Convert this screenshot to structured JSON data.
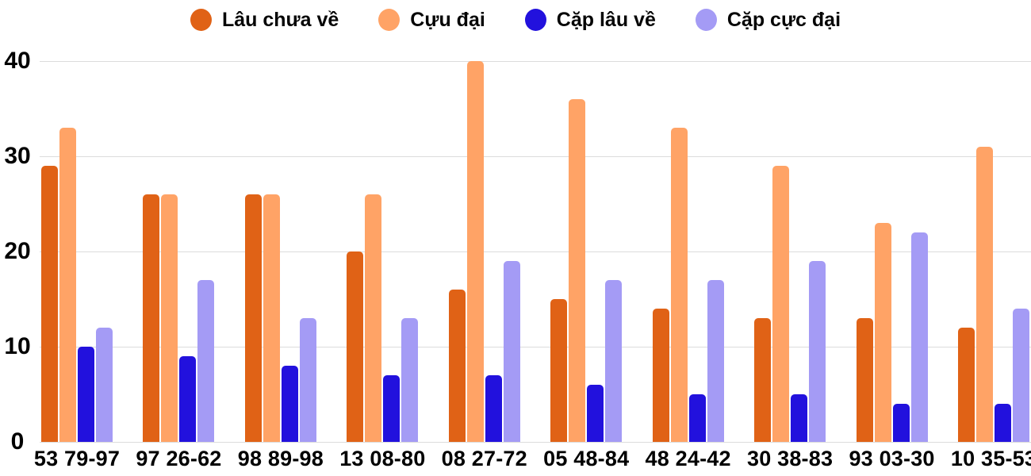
{
  "chart_data": {
    "type": "bar",
    "title": "",
    "xlabel": "",
    "ylabel": "",
    "categories": [
      "53 79-97",
      "97 26-62",
      "98 89-98",
      "13 08-80",
      "08 27-72",
      "05 48-84",
      "48 24-42",
      "30 38-83",
      "93 03-30",
      "10 35-53"
    ],
    "series": [
      {
        "name": "Lâu chưa về",
        "color": "#E06216",
        "values": [
          29,
          26,
          26,
          20,
          16,
          15,
          14,
          13,
          13,
          12
        ]
      },
      {
        "name": "Cựu đại",
        "color": "#FFA366",
        "values": [
          33,
          26,
          26,
          26,
          40,
          36,
          33,
          29,
          23,
          31
        ]
      },
      {
        "name": "Cặp lâu về",
        "color": "#2211DD",
        "values": [
          10,
          9,
          8,
          7,
          7,
          6,
          5,
          5,
          4,
          4
        ]
      },
      {
        "name": "Cặp cực đại",
        "color": "#A49BF5",
        "values": [
          12,
          17,
          13,
          13,
          19,
          17,
          17,
          19,
          22,
          14
        ]
      }
    ],
    "ylim": [
      0,
      40
    ],
    "yticks": [
      0,
      10,
      20,
      30,
      40
    ],
    "grid": "horizontal",
    "legend_position": "top"
  },
  "style": {
    "background": "#FFFFFF",
    "grid_color": "#DCDCDC",
    "text_color": "#000000"
  }
}
